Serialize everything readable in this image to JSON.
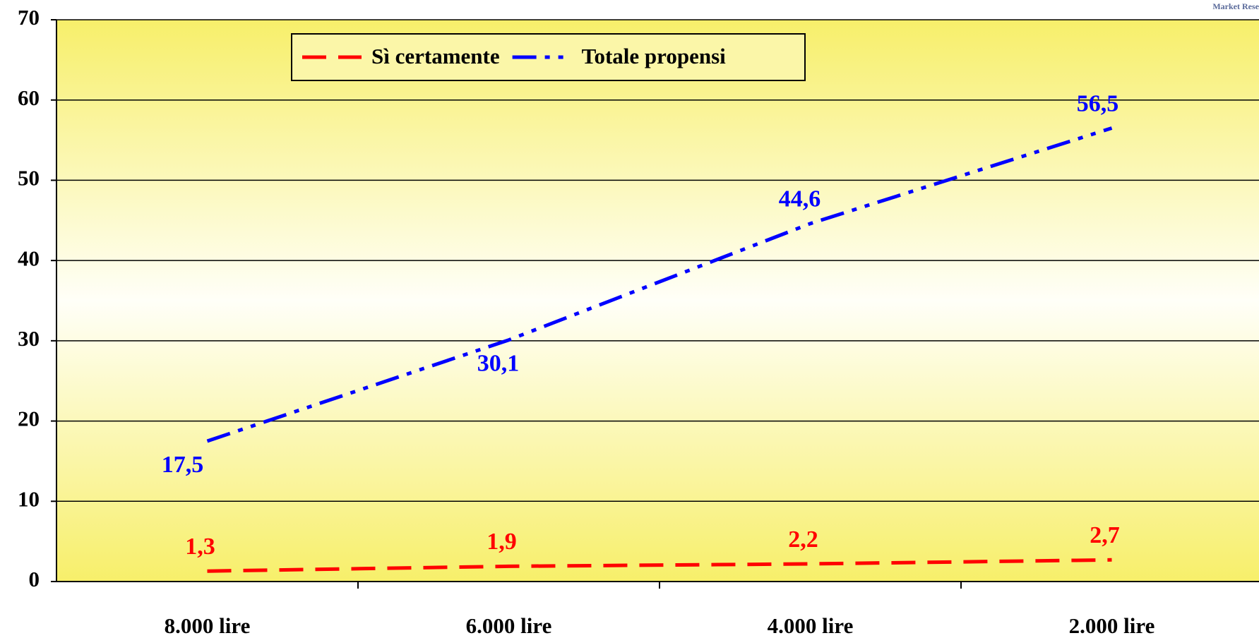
{
  "chart_data": {
    "type": "line",
    "categories": [
      "8.000 lire",
      "6.000 lire",
      "4.000 lire",
      "2.000 lire"
    ],
    "series": [
      {
        "name": "Sì certamente",
        "color": "#ff0000",
        "values": [
          1.3,
          1.9,
          2.2,
          2.7
        ],
        "value_labels": [
          "1,3",
          "1,9",
          "2,2",
          "2,7"
        ]
      },
      {
        "name": "Totale propensi",
        "color": "#0000ff",
        "values": [
          17.5,
          30.1,
          44.6,
          56.5
        ],
        "value_labels": [
          "17,5",
          "30,1",
          "44,6",
          "56,5"
        ]
      }
    ],
    "ylim": [
      0,
      70
    ],
    "yticks": [
      0,
      10,
      20,
      30,
      40,
      50,
      60,
      70
    ],
    "grid": true,
    "legend": "top",
    "logo_text": "Market Rese"
  }
}
